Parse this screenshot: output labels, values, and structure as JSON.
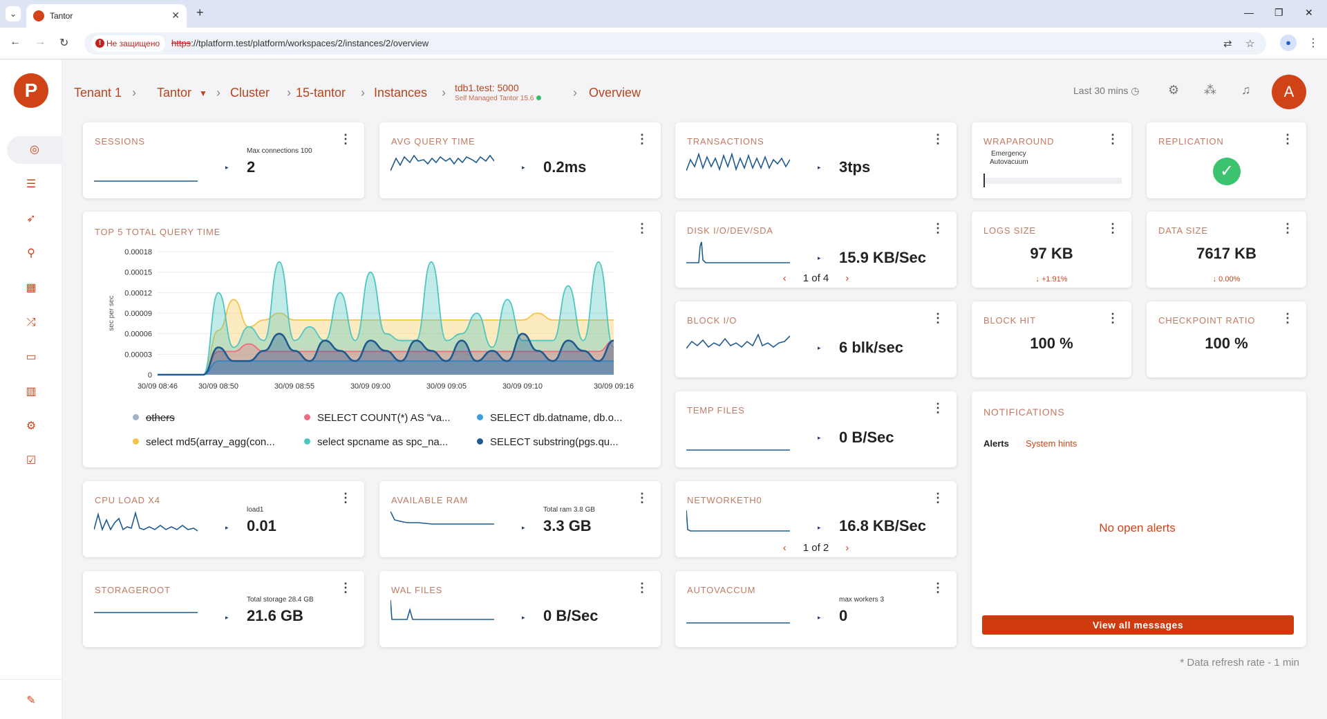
{
  "browser": {
    "tab_title": "Tantor",
    "insecure_label": "Не защищено",
    "url_scheme": "https",
    "url_rest": "://tplatform.test/platform/workspaces/2/instances/2/overview"
  },
  "header": {
    "crumbs": [
      "Tenant 1",
      "Tantor",
      "Cluster",
      "15-tantor",
      "Instances"
    ],
    "instance_name": "tdb1.test: 5000",
    "instance_sub": "Self Managed Tantor 15.6",
    "current": "Overview",
    "time_range": "Last 30 mins",
    "avatar_letter": "A"
  },
  "cards": {
    "sessions": {
      "title": "SESSIONS",
      "label": "Max connections 100",
      "value": "2"
    },
    "avg_query": {
      "title": "AVG QUERY TIME",
      "value": "0.2ms"
    },
    "transactions": {
      "title": "TRANSACTIONS",
      "value": "3tps"
    },
    "wraparound": {
      "title": "WRAPAROUND",
      "label1": "Emergency",
      "label2": "Autovacuum"
    },
    "replication": {
      "title": "REPLICATION",
      "status_color": "#3cc36f"
    },
    "disk_io": {
      "title": "DISK I/O/DEV/SDA",
      "value": "15.9 KB/Sec",
      "pager": "1 of 4"
    },
    "logs_size": {
      "title": "LOGS SIZE",
      "value": "97 KB",
      "delta": "↓ +1.91%"
    },
    "data_size": {
      "title": "DATA SIZE",
      "value": "7617 KB",
      "delta": "↓ 0.00%"
    },
    "block_io": {
      "title": "BLOCK I/O",
      "value": "6 blk/sec"
    },
    "block_hit": {
      "title": "BLOCK HIT",
      "value": "100 %"
    },
    "checkpoint": {
      "title": "CHECKPOINT RATIO",
      "value": "100 %"
    },
    "temp_files": {
      "title": "TEMP FILES",
      "value": "0 B/Sec"
    },
    "cpu": {
      "title": "CPU LOAD X4",
      "label": "load1",
      "value": "0.01"
    },
    "ram": {
      "title": "AVAILABLE RAM",
      "label": "Total ram 3.8 GB",
      "value": "3.3 GB"
    },
    "network": {
      "title": "NETWORKETH0",
      "value": "16.8 KB/Sec",
      "pager": "1 of 2"
    },
    "storage": {
      "title": "STORAGEROOT",
      "label": "Total storage 28.4 GB",
      "value": "21.6 GB"
    },
    "wal": {
      "title": "WAL FILES",
      "value": "0 B/Sec"
    },
    "autovacuum": {
      "title": "AUTOVACCUM",
      "label": "max workers 3",
      "value": "0"
    }
  },
  "notifications": {
    "title": "NOTIFICATIONS",
    "tab_alerts": "Alerts",
    "tab_hints": "System hints",
    "empty": "No open alerts",
    "button": "View all messages"
  },
  "footer_note": "* Data refresh rate - 1 min",
  "chart_data": {
    "type": "area",
    "title": "TOP 5 TOTAL QUERY TIME",
    "ylabel": "sec per sec",
    "ylim": [
      0,
      0.00018
    ],
    "yticks": [
      "0.00018",
      "0.00015",
      "0.00012",
      "0.00009",
      "0.00006",
      "0.00003",
      "0"
    ],
    "xticks": [
      "30/09 08:46",
      "30/09 08:50",
      "30/09 08:55",
      "30/09 09:00",
      "30/09 09:05",
      "30/09 09:10",
      "30/09 09:16"
    ],
    "x": [
      "08:46",
      "08:47",
      "08:48",
      "08:49",
      "08:50",
      "08:51",
      "08:52",
      "08:53",
      "08:54",
      "08:55",
      "08:56",
      "08:57",
      "08:58",
      "08:59",
      "09:00",
      "09:01",
      "09:02",
      "09:03",
      "09:04",
      "09:05",
      "09:06",
      "09:07",
      "09:08",
      "09:09",
      "09:10",
      "09:11",
      "09:12",
      "09:13",
      "09:14",
      "09:15",
      "09:16"
    ],
    "series": [
      {
        "name": "others",
        "color": "#9fb3c8",
        "hidden": true,
        "values": [
          0,
          0,
          0,
          0,
          0,
          0,
          0,
          0,
          0,
          0,
          0,
          0,
          0,
          0,
          0,
          0,
          0,
          0,
          0,
          0,
          0,
          0,
          0,
          0,
          0,
          0,
          0,
          0,
          0,
          0,
          0
        ]
      },
      {
        "name": "SELECT COUNT(*) AS \"va...",
        "color": "#f06b7e",
        "values": [
          0,
          0,
          0,
          0,
          3.4e-05,
          3.4e-05,
          4.5e-05,
          3.4e-05,
          3.4e-05,
          3.4e-05,
          3.4e-05,
          3.4e-05,
          3.4e-05,
          3.4e-05,
          3.4e-05,
          3.4e-05,
          3.4e-05,
          3.4e-05,
          3.4e-05,
          3.4e-05,
          3.4e-05,
          3.4e-05,
          3.4e-05,
          3.4e-05,
          3.4e-05,
          3.4e-05,
          3.4e-05,
          3.4e-05,
          3.4e-05,
          3.4e-05,
          5e-05
        ]
      },
      {
        "name": "SELECT db.datname, db.o...",
        "color": "#3d9be0",
        "values": [
          0,
          0,
          0,
          0,
          2e-05,
          2e-05,
          2e-05,
          2e-05,
          2e-05,
          2e-05,
          2e-05,
          2e-05,
          2e-05,
          2e-05,
          2e-05,
          2e-05,
          2e-05,
          2e-05,
          2e-05,
          2e-05,
          2e-05,
          2e-05,
          2e-05,
          2e-05,
          2e-05,
          2e-05,
          2e-05,
          2e-05,
          2e-05,
          2e-05,
          2e-05
        ]
      },
      {
        "name": "select md5(array_agg(con...",
        "color": "#f5c54a",
        "values": [
          0,
          0,
          0,
          0,
          6.5e-05,
          0.00011,
          7e-05,
          8e-05,
          9e-05,
          8e-05,
          8e-05,
          8e-05,
          8e-05,
          8e-05,
          8e-05,
          8e-05,
          8e-05,
          8e-05,
          8e-05,
          8e-05,
          8e-05,
          8e-05,
          8e-05,
          8e-05,
          8e-05,
          9e-05,
          8e-05,
          8e-05,
          8e-05,
          8e-05,
          8e-05
        ]
      },
      {
        "name": "select spcname as spc_na...",
        "color": "#4dc6c1",
        "values": [
          0,
          0,
          0,
          0,
          0.00012,
          4e-05,
          7e-05,
          5e-05,
          0.000165,
          5e-05,
          7e-05,
          5e-05,
          0.00012,
          5e-05,
          0.00015,
          6e-05,
          5e-05,
          5e-05,
          0.000165,
          5e-05,
          6e-05,
          9e-05,
          4e-05,
          0.00011,
          5e-05,
          5e-05,
          5e-05,
          0.00013,
          5e-05,
          0.000165,
          4e-05
        ]
      },
      {
        "name": "SELECT substring(pgs.qu...",
        "color": "#1f5a8f",
        "values": [
          0,
          0,
          0,
          0,
          4e-05,
          2e-05,
          2e-05,
          3.5e-05,
          6e-05,
          3.5e-05,
          2e-05,
          5e-05,
          3.5e-05,
          2e-05,
          5e-05,
          3.5e-05,
          2e-05,
          5e-05,
          3.5e-05,
          2e-05,
          5e-05,
          2e-05,
          3.5e-05,
          2e-05,
          6e-05,
          3.5e-05,
          2e-05,
          5e-05,
          3.5e-05,
          2e-05,
          5e-05
        ]
      }
    ]
  }
}
